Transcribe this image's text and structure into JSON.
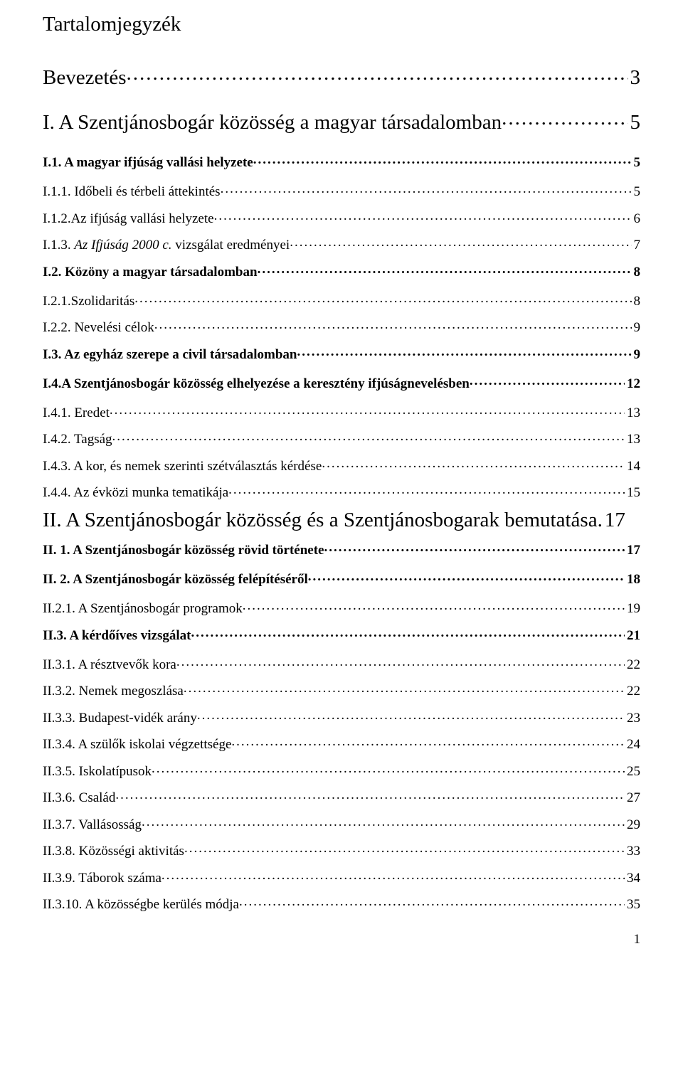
{
  "title": "Tartalomjegyzék",
  "entries": [
    {
      "level": "h1",
      "label": "Bevezetés",
      "page": "3",
      "style": ""
    },
    {
      "level": "h1",
      "label": "I. A Szentjánosbogár közösség a magyar társadalomban",
      "page": "5",
      "style": ""
    },
    {
      "level": "h2",
      "label": "I.1. A magyar ifjúság vallási helyzete",
      "page": "5",
      "style": ""
    },
    {
      "level": "h3",
      "label": "I.1.1. Időbeli és térbeli áttekintés",
      "page": "5",
      "style": ""
    },
    {
      "level": "h3",
      "label": "I.1.2.Az ifjúság vallási helyzete",
      "page": "6",
      "style": ""
    },
    {
      "level": "h3",
      "label_pre": "I.1.3. ",
      "label_italic": "Az Ifjúság 2000 c.",
      "label_post": " vizsgálat eredményei",
      "page": "7",
      "style": "mixed"
    },
    {
      "level": "h2",
      "label": "I.2. Közöny a magyar társadalomban",
      "page": "8",
      "style": ""
    },
    {
      "level": "h3",
      "label": "I.2.1.Szolidaritás",
      "page": "8",
      "style": ""
    },
    {
      "level": "h3",
      "label": "I.2.2. Nevelési célok",
      "page": "9",
      "style": ""
    },
    {
      "level": "h2",
      "label": "I.3. Az egyház szerepe a civil társadalomban",
      "page": "9",
      "style": ""
    },
    {
      "level": "h2",
      "label": "I.4.A Szentjánosbogár közösség elhelyezése a keresztény ifjúságnevelésben",
      "page": "12",
      "style": ""
    },
    {
      "level": "h3",
      "label": "I.4.1. Eredet",
      "page": "13",
      "style": ""
    },
    {
      "level": "h3",
      "label": "I.4.2. Tagság",
      "page": "13",
      "style": ""
    },
    {
      "level": "h3",
      "label": "I.4.3. A kor, és nemek szerinti szétválasztás kérdése",
      "page": "14",
      "style": ""
    },
    {
      "level": "h3",
      "label": "I.4.4. Az évközi munka tematikája",
      "page": "15",
      "style": ""
    },
    {
      "level": "h1",
      "label": "II. A Szentjánosbogár közösség és a Szentjánosbogarak bemutatása",
      "page": "17",
      "style": "sep-period"
    },
    {
      "level": "h2",
      "label": "II. 1. A Szentjánosbogár közösség rövid története",
      "page": "17",
      "style": ""
    },
    {
      "level": "h2",
      "label": "II. 2. A Szentjánosbogár közösség felépítéséről",
      "page": "18",
      "style": ""
    },
    {
      "level": "h3",
      "label": "II.2.1. A Szentjánosbogár programok",
      "page": "19",
      "style": ""
    },
    {
      "level": "h2",
      "label": "II.3. A kérdőíves vizsgálat",
      "page": "21",
      "style": ""
    },
    {
      "level": "h3",
      "label": "II.3.1. A résztvevők kora",
      "page": "22",
      "style": ""
    },
    {
      "level": "h3",
      "label": "II.3.2. Nemek megoszlása",
      "page": "22",
      "style": ""
    },
    {
      "level": "h3",
      "label": "II.3.3. Budapest-vidék arány",
      "page": "23",
      "style": ""
    },
    {
      "level": "h3",
      "label": "II.3.4. A szülők iskolai végzettsége",
      "page": "24",
      "style": ""
    },
    {
      "level": "h3",
      "label": "II.3.5. Iskolatípusok",
      "page": "25",
      "style": ""
    },
    {
      "level": "h3",
      "label": "II.3.6. Család",
      "page": "27",
      "style": ""
    },
    {
      "level": "h3",
      "label": "II.3.7. Vallásosság",
      "page": "29",
      "style": ""
    },
    {
      "level": "h3",
      "label": "II.3.8. Közösségi aktivitás",
      "page": "33",
      "style": ""
    },
    {
      "level": "h3",
      "label": "II.3.9. Táborok száma",
      "page": "34",
      "style": ""
    },
    {
      "level": "h3",
      "label": "II.3.10. A közösségbe kerülés módja",
      "page": "35",
      "style": ""
    }
  ],
  "pageNumber": "1"
}
